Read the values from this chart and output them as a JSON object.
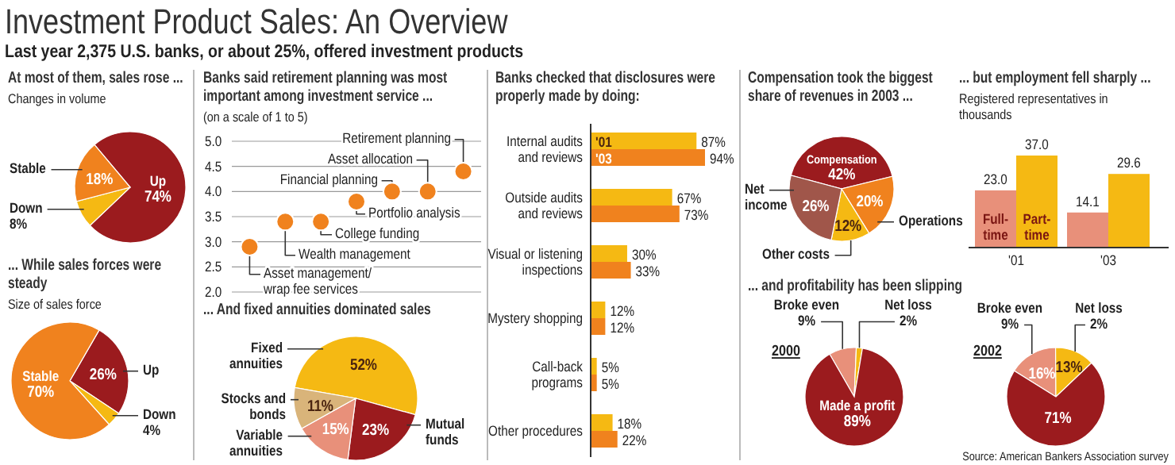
{
  "chart_data": [
    {
      "type": "other",
      "title": "Investment Product Sales: An Overview",
      "subtitle": "Last year 2,375 U.S. banks, or about 25%, offered investment products",
      "annotations": [
        "Source: American Bankers Association survey"
      ]
    },
    {
      "type": "pie",
      "title": "At most of them, sales rose ...",
      "subtitle": "Changes in volume",
      "categories": [
        "Up",
        "Down",
        "Stable"
      ],
      "values": [
        74,
        8,
        18
      ],
      "colors": [
        "#9b1b1e",
        "#f5b913",
        "#f0821e"
      ],
      "value_labels": [
        "74%",
        "8%",
        "18%"
      ]
    },
    {
      "type": "pie",
      "title": "... While sales forces were steady",
      "subtitle": "Size of sales force",
      "categories": [
        "Up",
        "Down",
        "Stable"
      ],
      "values": [
        26,
        4,
        70
      ],
      "colors": [
        "#9b1b1e",
        "#f5b913",
        "#f0821e"
      ],
      "value_labels": [
        "26%",
        "4%",
        "70%"
      ]
    },
    {
      "type": "scatter",
      "title": "Banks said retirement planning was most important among investment service ...",
      "subtitle": "(on a scale of 1 to 5)",
      "categories": [
        null,
        null,
        null,
        null,
        null,
        null,
        null
      ],
      "values": [
        2.9,
        3.4,
        3.4,
        3.8,
        4.0,
        4.0,
        4.4
      ],
      "color": "#f0821e",
      "marker": "circle",
      "grid": "y",
      "ylim": [
        2,
        5
      ],
      "yticks": [
        {
          "value": 2,
          "label": "2.0"
        },
        {
          "value": 2.5,
          "label": "2.5"
        },
        {
          "value": 3,
          "label": "3.0"
        },
        {
          "value": 3.5,
          "label": "3.5"
        },
        {
          "value": 4,
          "label": "4.0"
        },
        {
          "value": 4.5,
          "label": "4.5"
        },
        {
          "value": 5,
          "label": "5.0"
        }
      ],
      "annotations": [
        "Asset management/ wrap fee services",
        "Wealth management",
        "College funding",
        "Portfolio analysis",
        "Financial planning",
        "Asset allocation",
        "Retirement planning"
      ]
    },
    {
      "type": "pie",
      "title": "... And fixed annuities dominated sales",
      "categories": [
        "Fixed annuities",
        "Mutual funds",
        "Variable annuities",
        "Stocks and bonds"
      ],
      "values": [
        52,
        23,
        15,
        11
      ],
      "colors": [
        "#f5b913",
        "#9b1b1e",
        "#e8907a",
        "#d9b47a"
      ],
      "value_labels": [
        "52%",
        "23%",
        "15%",
        "11%"
      ]
    },
    {
      "type": "bar",
      "orientation": "horizontal",
      "title": "Banks checked that disclosures were properly made by doing:",
      "categories": [
        "Internal audits and reviews",
        "Outside audits and reviews",
        "Visual or listening inspections",
        "Mystery shopping",
        "Call-back programs",
        "Other procedures"
      ],
      "series": [
        {
          "name": "'01",
          "color": "#f5b913",
          "values": [
            87,
            67,
            30,
            12,
            5,
            18
          ],
          "value_labels": [
            "87%",
            "67%",
            "30%",
            "12%",
            "5%",
            "18%"
          ]
        },
        {
          "name": "'03",
          "color": "#f0821e",
          "values": [
            94,
            73,
            33,
            12,
            5,
            22
          ],
          "value_labels": [
            "94%",
            "73%",
            "33%",
            "12%",
            "5%",
            "22%"
          ]
        }
      ]
    },
    {
      "type": "pie",
      "title": "Compensation took the biggest share of revenues in 2003 ...",
      "categories": [
        "Compensation",
        "Operations",
        "Other costs",
        "Net income"
      ],
      "values": [
        42,
        20,
        12,
        26
      ],
      "colors": [
        "#9b1b1e",
        "#f0821e",
        "#f5b913",
        "#a0564a"
      ],
      "value_labels": [
        "42%",
        "20%",
        "12%",
        "26%"
      ]
    },
    {
      "type": "bar",
      "title": "... but employment fell sharply ...",
      "subtitle": "Registered representatives in thousands",
      "categories": [
        "'01",
        "'03"
      ],
      "series": [
        {
          "name": "Full-time",
          "color": "#e8907a",
          "values": [
            23.0,
            14.1
          ],
          "value_labels": [
            "23.0",
            "14.1"
          ]
        },
        {
          "name": "Part-time",
          "color": "#f5b913",
          "values": [
            37.0,
            29.6
          ],
          "value_labels": [
            "37.0",
            "29.6"
          ]
        }
      ]
    },
    {
      "type": "pie",
      "title": "... and profitability has been slipping",
      "subtitle": "2000",
      "categories": [
        "Broke even",
        "Net loss",
        "Made a profit"
      ],
      "values": [
        9,
        2,
        89
      ],
      "colors": [
        "#e8907a",
        "#f5b913",
        "#9b1b1e"
      ],
      "value_labels": [
        "9%",
        "2%",
        "89%"
      ]
    },
    {
      "type": "pie",
      "subtitle": "2002",
      "categories": [
        "Broke even",
        "Net loss",
        null
      ],
      "values": [
        16,
        13,
        71
      ],
      "colors": [
        "#e8907a",
        "#f5b913",
        "#9b1b1e"
      ],
      "value_labels": [
        "16%",
        "13%",
        "71%"
      ],
      "annotations": [
        "9%",
        "2%"
      ]
    }
  ]
}
